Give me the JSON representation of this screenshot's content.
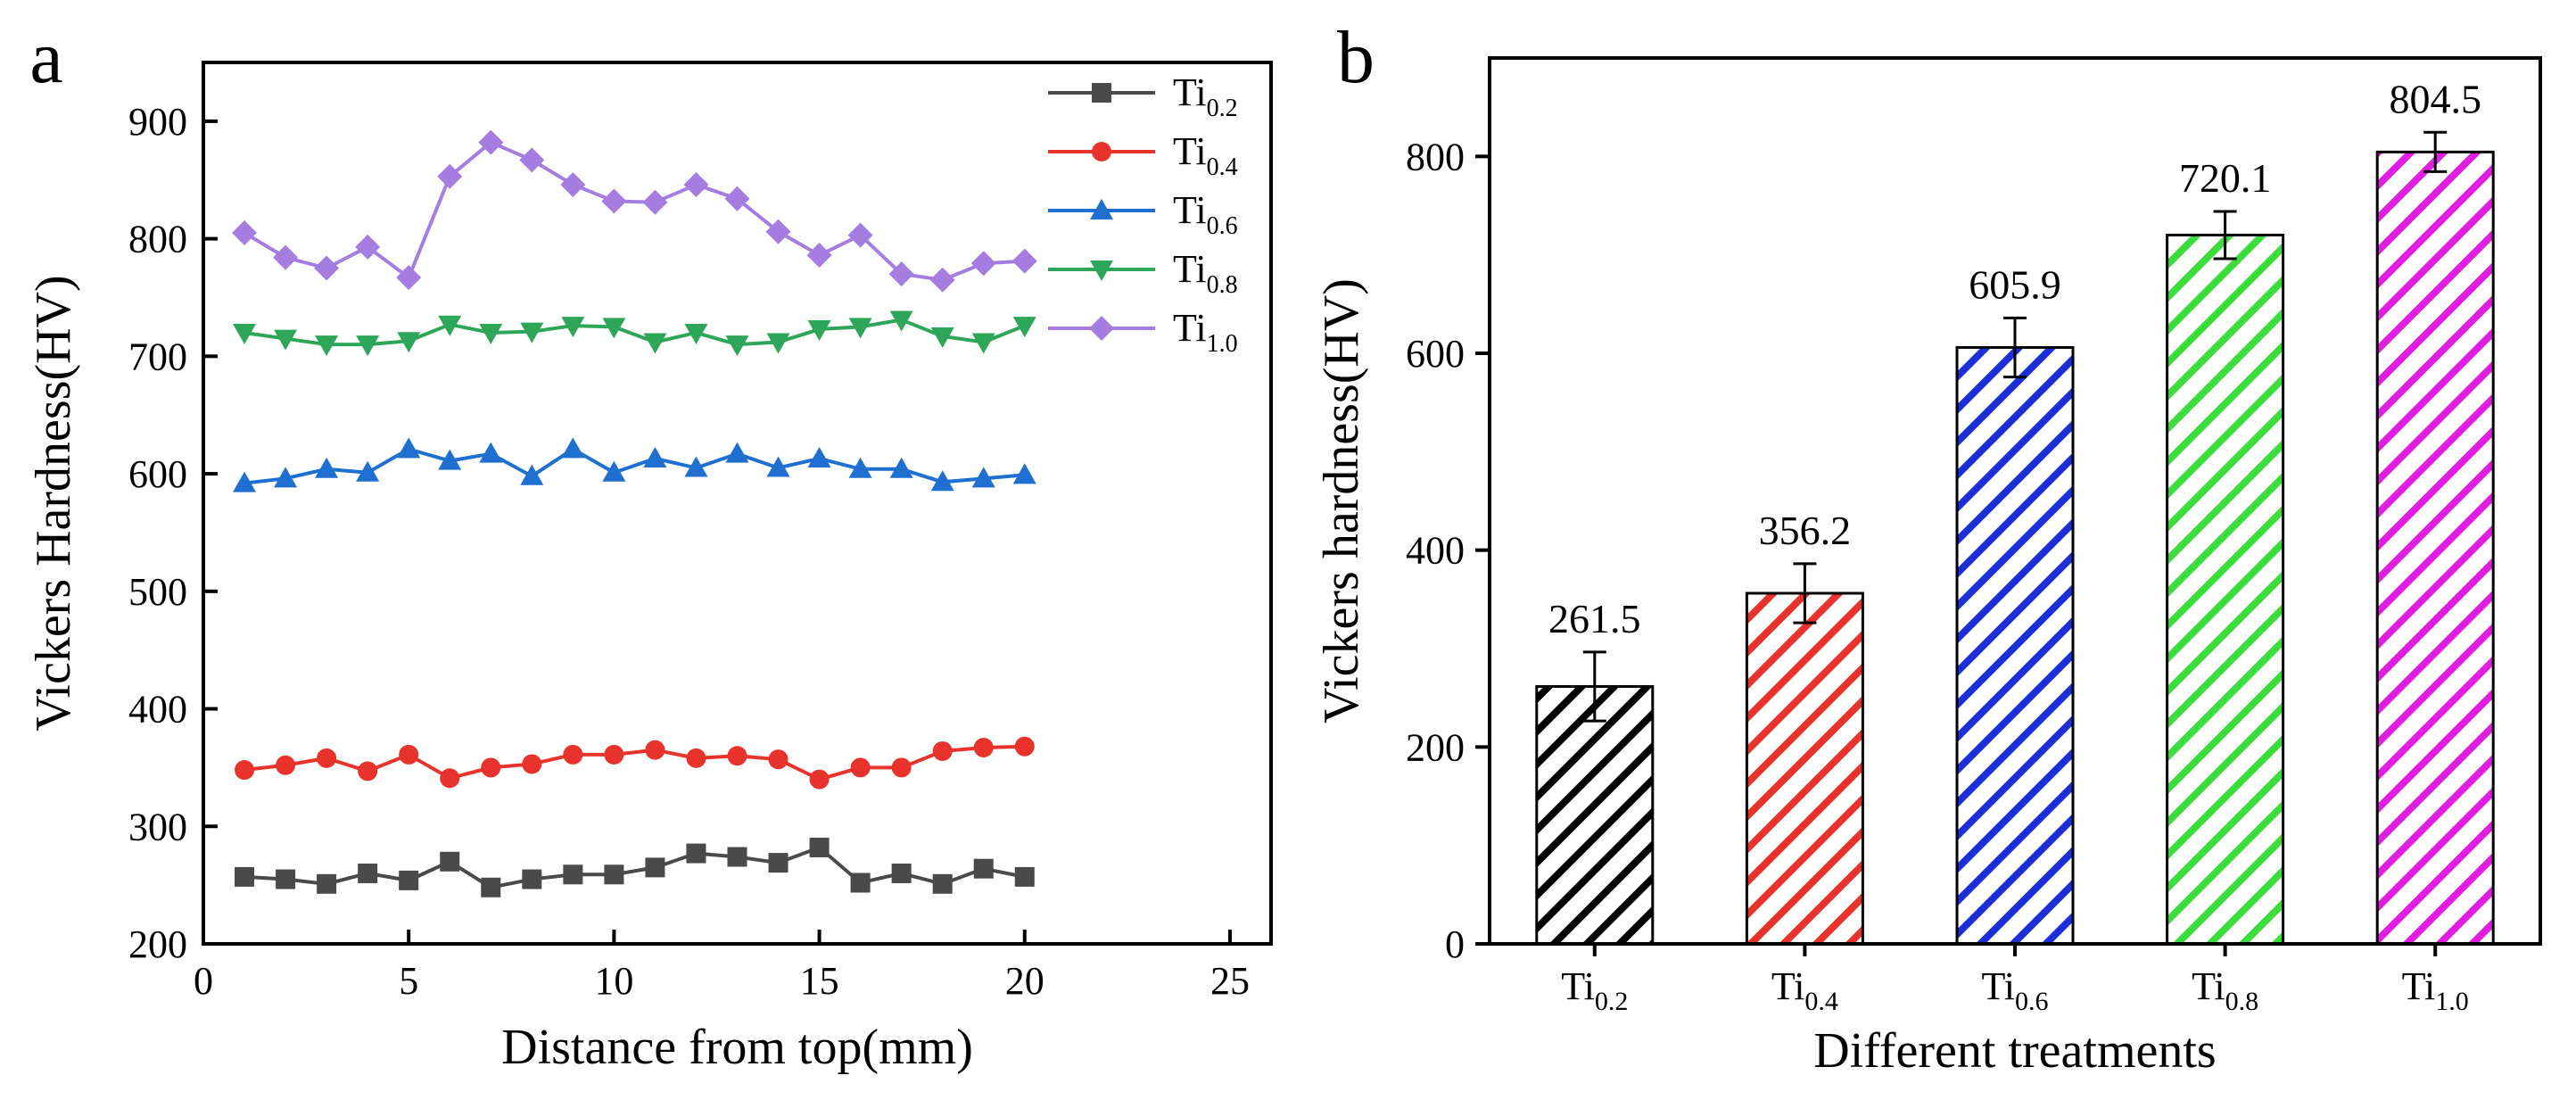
{
  "chart_data": [
    {
      "panel": "a",
      "type": "line",
      "title": "",
      "xlabel": "Distance from top(mm)",
      "ylabel": "Vickers Hardness(HV)",
      "xlim": [
        0,
        26
      ],
      "ylim": [
        200,
        950
      ],
      "xticks": [
        0,
        5,
        10,
        15,
        20,
        25
      ],
      "yticks": [
        200,
        300,
        400,
        500,
        600,
        700,
        800,
        900
      ],
      "legend_position": "top-right",
      "x": [
        1,
        2,
        3,
        4,
        5,
        6,
        7,
        8,
        9,
        10,
        11,
        12,
        13,
        14,
        15,
        16,
        17,
        18,
        19,
        20
      ],
      "series": [
        {
          "name": "Ti",
          "sub": "0.2",
          "color": "#4a4a4a",
          "marker": "square",
          "values": [
            257,
            255,
            251,
            260,
            254,
            270,
            248,
            255,
            259,
            259,
            265,
            277,
            274,
            269,
            282,
            252,
            260,
            251,
            264,
            257
          ]
        },
        {
          "name": "Ti",
          "sub": "0.4",
          "color": "#e8322c",
          "marker": "circle",
          "values": [
            348,
            352,
            358,
            347,
            361,
            341,
            350,
            353,
            361,
            361,
            365,
            358,
            360,
            357,
            340,
            350,
            350,
            364,
            367,
            368
          ]
        },
        {
          "name": "Ti",
          "sub": "0.6",
          "color": "#1f6fd0",
          "marker": "triangle-up",
          "values": [
            592,
            596,
            604,
            601,
            621,
            611,
            617,
            598,
            621,
            601,
            613,
            605,
            617,
            605,
            613,
            604,
            604,
            593,
            596,
            599
          ]
        },
        {
          "name": "Ti",
          "sub": "0.8",
          "color": "#2ea65a",
          "marker": "triangle-down",
          "values": [
            720,
            715,
            710,
            710,
            713,
            727,
            720,
            721,
            726,
            725,
            712,
            720,
            710,
            712,
            723,
            725,
            731,
            717,
            712,
            726
          ]
        },
        {
          "name": "Ti",
          "sub": "1.0",
          "color": "#a57de0",
          "marker": "diamond",
          "values": [
            805,
            784,
            775,
            793,
            767,
            853,
            882,
            867,
            846,
            832,
            831,
            846,
            834,
            806,
            786,
            803,
            770,
            765,
            779,
            781
          ]
        }
      ]
    },
    {
      "panel": "b",
      "type": "bar",
      "title": "",
      "xlabel": "Different treatments",
      "ylabel": "Vickers hardness(HV)",
      "ylim": [
        0,
        900
      ],
      "yticks": [
        0,
        200,
        400,
        600,
        800
      ],
      "categories": [
        {
          "name": "Ti",
          "sub": "0.2"
        },
        {
          "name": "Ti",
          "sub": "0.4"
        },
        {
          "name": "Ti",
          "sub": "0.6"
        },
        {
          "name": "Ti",
          "sub": "0.8"
        },
        {
          "name": "Ti",
          "sub": "1.0"
        }
      ],
      "values": [
        261.5,
        356.2,
        605.9,
        720.1,
        804.5
      ],
      "value_labels": [
        "261.5",
        "356.2",
        "605.9",
        "720.1",
        "804.5"
      ],
      "errors": [
        35,
        30,
        30,
        24,
        20
      ],
      "colors": [
        "#000000",
        "#e8322c",
        "#1c2fd6",
        "#3ddc3d",
        "#e01ee0"
      ]
    }
  ]
}
